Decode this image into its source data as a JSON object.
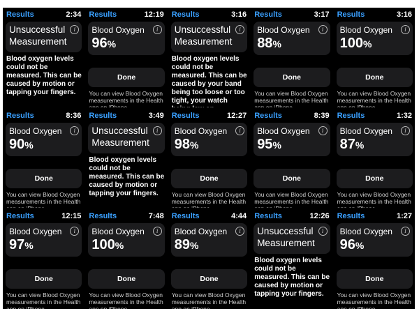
{
  "screens": [
    {
      "results": "Results",
      "time": "2:34",
      "kind": "bad",
      "title": "Unsuccessful Measurement",
      "message": "Blood oxygen levels could not be measured. This can be caused by motion or tapping your fingers."
    },
    {
      "results": "Results",
      "time": "12:19",
      "kind": "ok",
      "title": "Blood Oxygen",
      "value": "96",
      "unit": "%",
      "done": "Done",
      "note": "You can view Blood Oxygen measurements in the Health app on iPhone."
    },
    {
      "results": "Results",
      "time": "3:16",
      "kind": "bad",
      "title": "Unsuccessful Measurement",
      "message": "Blood oxygen levels could not be measured. This can be caused by your band being too loose or too tight, your watch being low on"
    },
    {
      "results": "Results",
      "time": "3:17",
      "kind": "ok",
      "title": "Blood Oxygen",
      "value": "88",
      "unit": "%",
      "done": "Done",
      "note": "You can view Blood Oxygen measurements in the Health app on iPhone."
    },
    {
      "results": "Results",
      "time": "3:16",
      "kind": "ok",
      "title": "Blood Oxygen",
      "value": "100",
      "unit": "%",
      "done": "Done",
      "note": "You can view Blood Oxygen measurements in the Health app on iPhone."
    },
    {
      "results": "Results",
      "time": "8:36",
      "kind": "ok",
      "title": "Blood Oxygen",
      "value": "90",
      "unit": "%",
      "done": "Done",
      "note": "You can view Blood Oxygen measurements in the Health app on iPhone."
    },
    {
      "results": "Results",
      "time": "3:49",
      "kind": "bad",
      "title": "Unsuccessful Measurement",
      "message": "Blood oxygen levels could not be measured. This can be caused by motion or tapping your fingers."
    },
    {
      "results": "Results",
      "time": "12:27",
      "kind": "ok",
      "title": "Blood Oxygen",
      "value": "98",
      "unit": "%",
      "done": "Done",
      "note": "You can view Blood Oxygen measurements in the Health app on iPhone."
    },
    {
      "results": "Results",
      "time": "8:39",
      "kind": "ok",
      "title": "Blood Oxygen",
      "value": "95",
      "unit": "%",
      "done": "Done",
      "note": "You can view Blood Oxygen measurements in the Health app on iPhone."
    },
    {
      "results": "Results",
      "time": "1:32",
      "kind": "ok",
      "title": "Blood Oxygen",
      "value": "87",
      "unit": "%",
      "done": "Done",
      "note": "You can view Blood Oxygen measurements in the Health app on iPhone."
    },
    {
      "results": "Results",
      "time": "12:15",
      "kind": "ok",
      "title": "Blood Oxygen",
      "value": "97",
      "unit": "%",
      "done": "Done",
      "note": "You can view Blood Oxygen measurements in the Health app on iPhone."
    },
    {
      "results": "Results",
      "time": "7:48",
      "kind": "ok",
      "title": "Blood Oxygen",
      "value": "100",
      "unit": "%",
      "done": "Done",
      "note": "You can view Blood Oxygen measurements in the Health app on iPhone."
    },
    {
      "results": "Results",
      "time": "4:44",
      "kind": "ok",
      "title": "Blood Oxygen",
      "value": "89",
      "unit": "%",
      "done": "Done",
      "note": "You can view Blood Oxygen measurements in the Health app on iPhone."
    },
    {
      "results": "Results",
      "time": "12:26",
      "kind": "bad",
      "title": "Unsuccessful Measurement",
      "message": "Blood oxygen levels could not be measured. This can be caused by motion or tapping your fingers."
    },
    {
      "results": "Results",
      "time": "1:27",
      "kind": "ok",
      "title": "Blood Oxygen",
      "value": "96",
      "unit": "%",
      "done": "Done",
      "note": "You can view Blood Oxygen measurements in the Health app on iPhone."
    }
  ],
  "colors": {
    "accent": "#3aa0ff",
    "card": "#1c1c1e",
    "background": "#000000"
  },
  "icons": {
    "info": "info-icon"
  }
}
